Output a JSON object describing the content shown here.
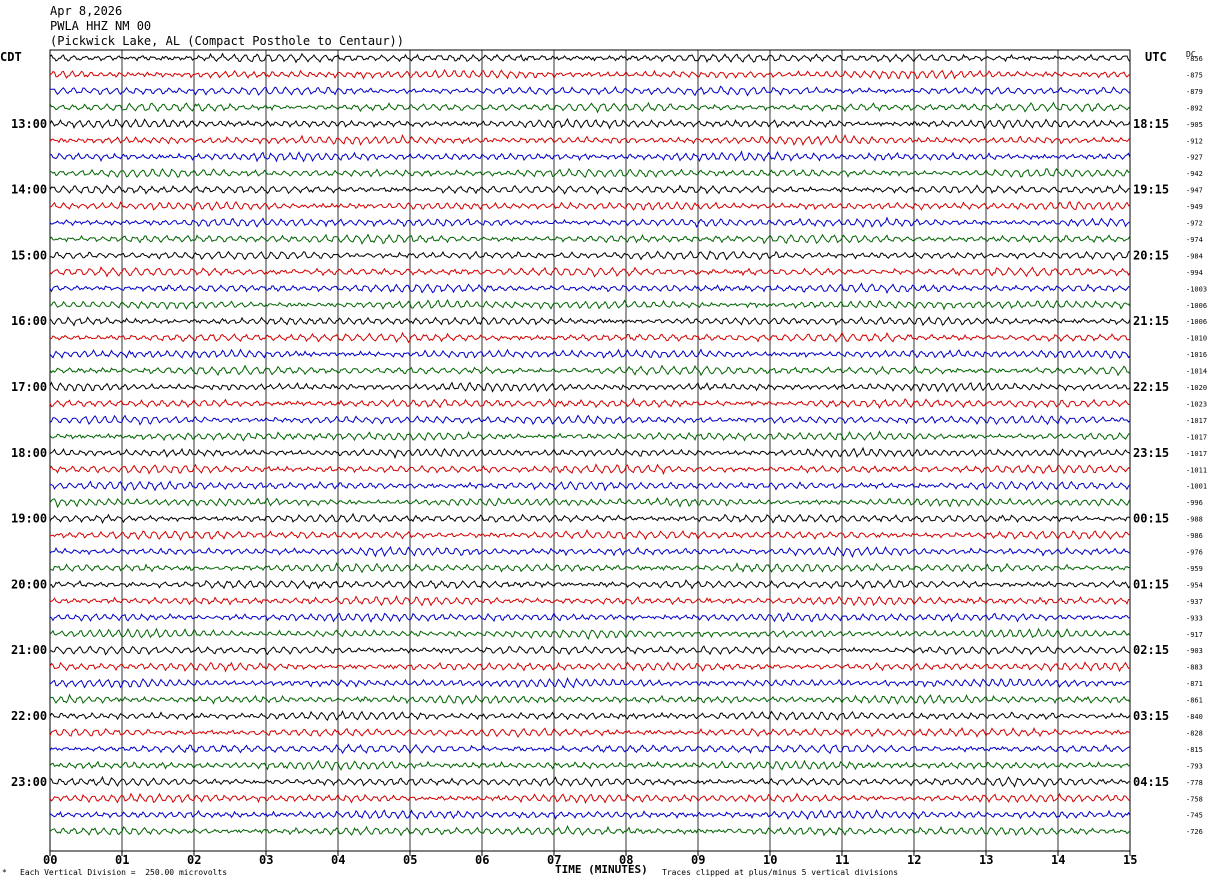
{
  "header": {
    "date": "Apr 8,2026",
    "station": "PWLA HHZ NM 00",
    "location": "(Pickwick Lake, AL (Compact Posthole to Centaur))"
  },
  "left_tz": "CDT",
  "right_tz": "UTC",
  "dc_label": "DC",
  "footer": {
    "scale": "Each Vertical Division =  250.00 microvolts",
    "clip": "Traces clipped at plus/minus 5 vertical divisions",
    "xlabel": "TIME (MINUTES)"
  },
  "colors": {
    "trace_cycle": [
      "#000000",
      "#d40000",
      "#0000c8",
      "#006400"
    ],
    "grid": "#000000"
  },
  "chart_data": {
    "type": "line",
    "title": "Apr 8,2026",
    "xlabel": "TIME (MINUTES)",
    "ylabel": "",
    "xlim": [
      0,
      15
    ],
    "x_ticks": [
      "00",
      "01",
      "02",
      "03",
      "04",
      "05",
      "06",
      "07",
      "08",
      "09",
      "10",
      "11",
      "12",
      "13",
      "14",
      "15"
    ],
    "rows_per_hour": 4,
    "row_count": 48,
    "left_hour_labels": [
      "13:00",
      "14:00",
      "15:00",
      "16:00",
      "17:00",
      "18:00",
      "19:00",
      "20:00",
      "21:00",
      "22:00",
      "23:00"
    ],
    "right_hour_labels": [
      "18:15",
      "19:15",
      "20:15",
      "21:15",
      "22:15",
      "23:15",
      "00:15",
      "01:15",
      "02:15",
      "03:15",
      "04:15"
    ],
    "dc_offsets": [
      "-856",
      "-875",
      "-879",
      "-892",
      "-905",
      "-912",
      "-927",
      "-942",
      "-947",
      "-949",
      "-972",
      "-974",
      "-984",
      "-994",
      "-1003",
      "-1006",
      "-1006",
      "-1010",
      "-1016",
      "-1014",
      "-1020",
      "-1023",
      "-1017",
      "-1017",
      "-1017",
      "-1011",
      "-1001",
      "-996",
      "-988",
      "-986",
      "-976",
      "-959",
      "-954",
      "-937",
      "-933",
      "-917",
      "-903",
      "-883",
      "-871",
      "-861",
      "-840",
      "-828",
      "-815",
      "-793",
      "-778",
      "-758",
      "-745",
      "-726"
    ],
    "grid": true
  }
}
